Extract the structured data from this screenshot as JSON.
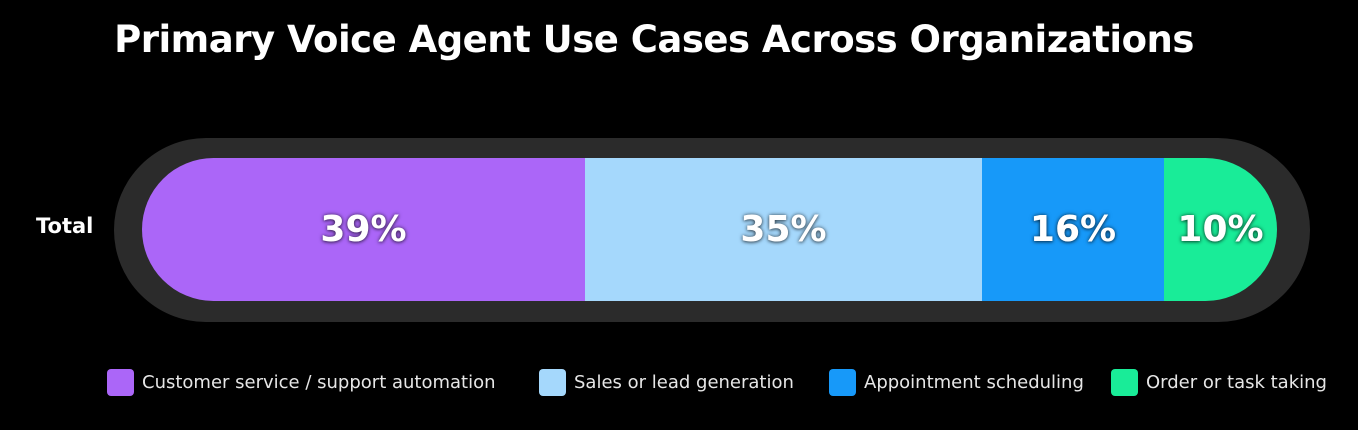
{
  "chart_data": {
    "type": "bar",
    "orientation": "horizontal",
    "stacked": true,
    "percent": true,
    "title": "Primary Voice Agent Use Cases Across Organizations",
    "categories": [
      "Total"
    ],
    "series": [
      {
        "name": "Customer service / support automation",
        "values": [
          39
        ],
        "label": "39%",
        "color": "#ab66f8"
      },
      {
        "name": "Sales or lead generation",
        "values": [
          35
        ],
        "label": "35%",
        "color": "#a5d8fc"
      },
      {
        "name": "Appointment scheduling",
        "values": [
          16
        ],
        "label": "16%",
        "color": "#1799f9"
      },
      {
        "name": "Order or task taking",
        "values": [
          10
        ],
        "label": "10%",
        "color": "#19ec98"
      }
    ],
    "xlim": [
      0,
      100
    ],
    "legend_position": "bottom"
  },
  "colors": {
    "background": "#000000",
    "track": "#2b2b2b",
    "text": "#ffffff"
  }
}
